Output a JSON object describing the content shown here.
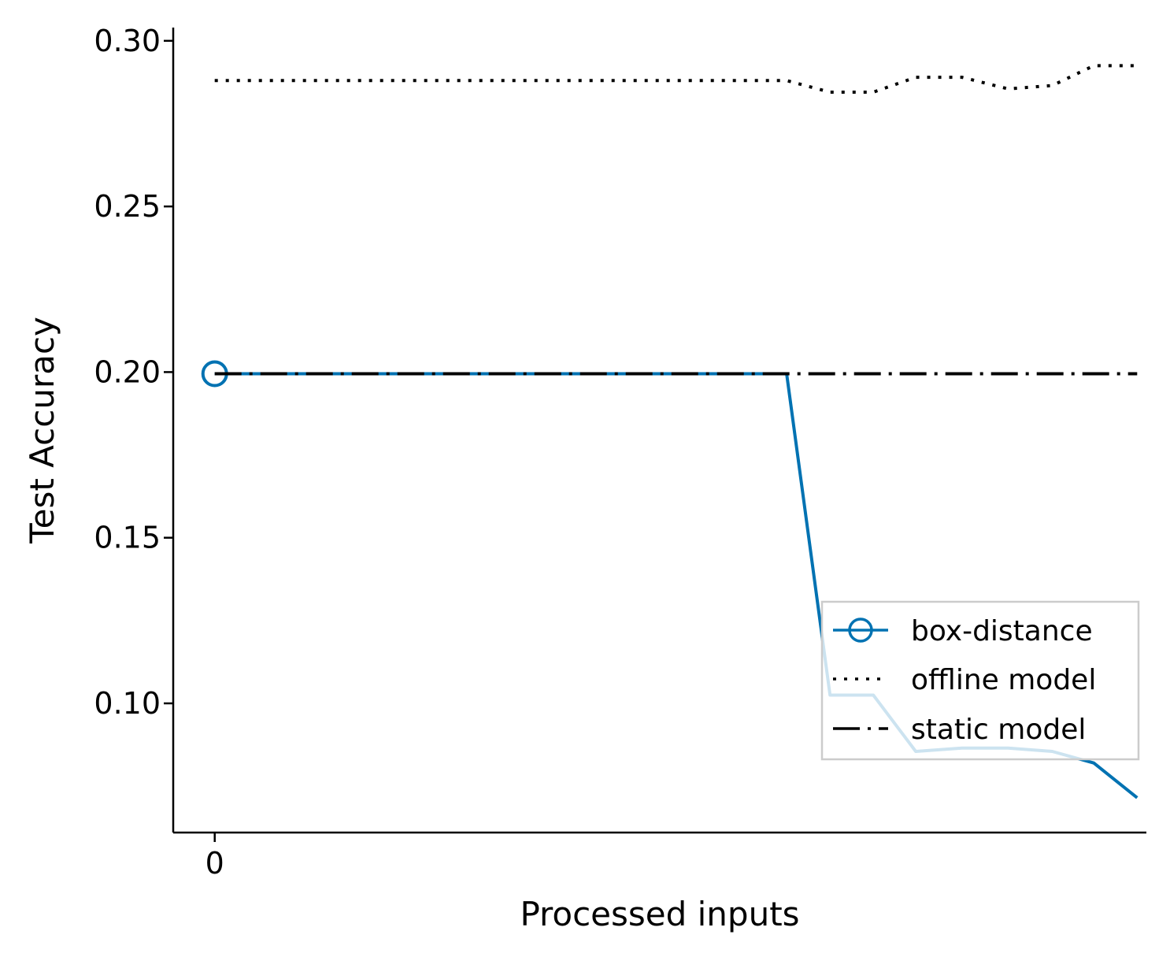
{
  "chart_data": {
    "type": "line",
    "xlabel": "Processed inputs",
    "ylabel": "Test Accuracy",
    "xlim": [
      -0.45,
      10.1
    ],
    "ylim": [
      0.061,
      0.304
    ],
    "xticks": [
      {
        "value": 0,
        "label": "0"
      }
    ],
    "yticks": [
      {
        "value": 0.1,
        "label": "0.10"
      },
      {
        "value": 0.15,
        "label": "0.15"
      },
      {
        "value": 0.2,
        "label": "0.20"
      },
      {
        "value": 0.25,
        "label": "0.25"
      },
      {
        "value": 0.3,
        "label": "0.30"
      }
    ],
    "grid": false,
    "legend_position": "lower-right",
    "series": [
      {
        "name": "box-distance",
        "color": "#0072b2",
        "style": "solid",
        "marker": "open-circle-at-start",
        "x": [
          0,
          6.2,
          6.67,
          7.14,
          7.6,
          8.1,
          8.6,
          9.08,
          9.53,
          10.0
        ],
        "y": [
          0.1995,
          0.1995,
          0.1025,
          0.1025,
          0.0855,
          0.0865,
          0.0865,
          0.0855,
          0.082,
          0.0715
        ]
      },
      {
        "name": "offline model",
        "color": "#000000",
        "style": "dotted",
        "x": [
          0,
          6.2,
          6.67,
          7.14,
          7.6,
          8.1,
          8.6,
          9.08,
          9.53,
          10.0
        ],
        "y": [
          0.288,
          0.288,
          0.2845,
          0.2845,
          0.289,
          0.289,
          0.2855,
          0.2865,
          0.2925,
          0.2925
        ]
      },
      {
        "name": "static model",
        "color": "#000000",
        "style": "dash-dot",
        "x": [
          0,
          10.0
        ],
        "y": [
          0.1995,
          0.1995
        ]
      }
    ]
  }
}
